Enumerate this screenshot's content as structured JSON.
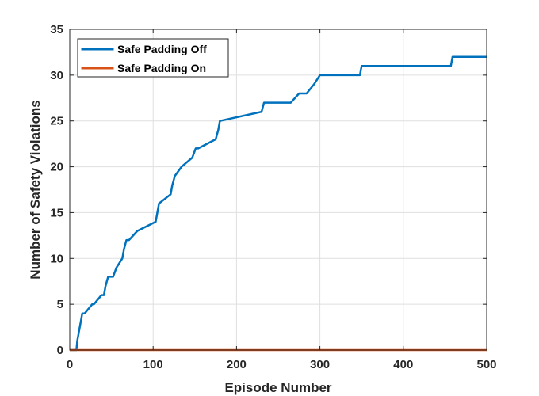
{
  "chart_data": {
    "type": "line",
    "xlabel": "Episode Number",
    "ylabel": "Number of Safety Violations",
    "xlim": [
      0,
      500
    ],
    "ylim": [
      0,
      35
    ],
    "xticks": [
      0,
      100,
      200,
      300,
      400,
      500
    ],
    "yticks": [
      0,
      5,
      10,
      15,
      20,
      25,
      30,
      35
    ],
    "grid": true,
    "legend_position": "top-left",
    "series": [
      {
        "name": "Safe Padding Off",
        "color": "#0072BD",
        "x": [
          0,
          8,
          9,
          11,
          13,
          15,
          18,
          27,
          29,
          38,
          41,
          43,
          46,
          52,
          56,
          63,
          65,
          68,
          71,
          81,
          103,
          107,
          121,
          123,
          126,
          134,
          147,
          151,
          154,
          175,
          178,
          180,
          230,
          233,
          237,
          265,
          275,
          284,
          293,
          300,
          348,
          350,
          457,
          459,
          500
        ],
        "values": [
          0,
          0,
          1,
          2,
          3,
          4,
          4,
          5,
          5,
          6,
          6,
          7,
          8,
          8,
          9,
          10,
          11,
          12,
          12,
          13,
          14,
          16,
          17,
          18,
          19,
          20,
          21,
          22,
          22,
          23,
          24,
          25,
          26,
          27,
          27,
          27,
          28,
          28,
          29,
          30,
          30,
          31,
          31,
          32,
          32
        ]
      },
      {
        "name": "Safe Padding On",
        "color": "#D95319",
        "x": [
          0,
          500
        ],
        "values": [
          0,
          0
        ]
      }
    ]
  }
}
